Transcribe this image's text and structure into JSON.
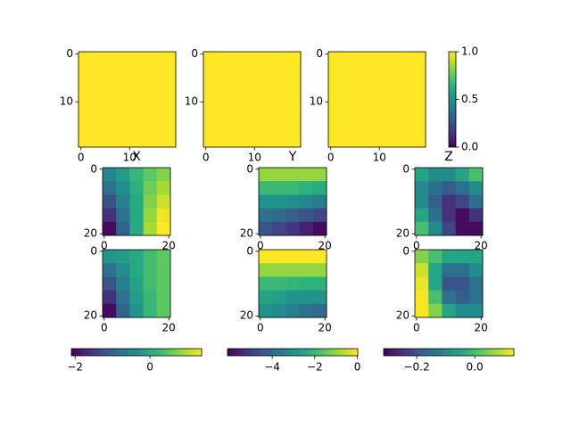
{
  "chart_data": [
    {
      "type": "heatmap",
      "cmap": "viridis",
      "clim": [
        0,
        1
      ],
      "xlim": [
        -0.5,
        19.5
      ],
      "ylim": [
        19.5,
        -0.5
      ],
      "xticks": [
        0,
        10
      ],
      "yticks": [
        0,
        10
      ],
      "z": [
        [
          1
        ]
      ]
    },
    {
      "type": "heatmap",
      "cmap": "viridis",
      "clim": [
        0,
        1
      ],
      "xlim": [
        -0.5,
        19.5
      ],
      "ylim": [
        19.5,
        -0.5
      ],
      "xticks": [
        0,
        10
      ],
      "yticks": [
        0,
        10
      ],
      "z": [
        [
          1
        ]
      ]
    },
    {
      "type": "heatmap",
      "cmap": "viridis",
      "clim": [
        0,
        1
      ],
      "xlim": [
        -0.5,
        19.5
      ],
      "ylim": [
        19.5,
        -0.5
      ],
      "xticks": [
        0,
        10
      ],
      "yticks": [
        0,
        10
      ],
      "z": [
        [
          1
        ]
      ]
    },
    {
      "type": "heatmap",
      "title": "X",
      "cmap": "viridis",
      "clim": [
        -2.1,
        1.38
      ],
      "xlim": [
        -0.5,
        20.5
      ],
      "ylim": [
        20.5,
        -0.5
      ],
      "xticks": [
        0,
        20
      ],
      "yticks": [
        0,
        20
      ],
      "z": [
        [
          -0.5,
          -0.2,
          0.2,
          0.5,
          0.7
        ],
        [
          -0.8,
          -0.4,
          0.1,
          0.6,
          0.9
        ],
        [
          -1.2,
          -0.6,
          0.0,
          0.7,
          1.1
        ],
        [
          -1.6,
          -0.8,
          0.0,
          0.8,
          1.3
        ],
        [
          -2.0,
          -1.0,
          0.0,
          0.9,
          1.38
        ]
      ]
    },
    {
      "type": "heatmap",
      "title": "Y",
      "cmap": "viridis",
      "clim": [
        -6.1,
        0.02
      ],
      "xlim": [
        -0.5,
        20.5
      ],
      "ylim": [
        20.5,
        -0.5
      ],
      "xticks": [
        0,
        20
      ],
      "yticks": [
        0,
        20
      ],
      "z": [
        [
          -1,
          -1,
          -1,
          -1,
          -1
        ],
        [
          -2,
          -2,
          -2,
          -2.2,
          -2.3
        ],
        [
          -3,
          -3,
          -3.1,
          -3.3,
          -3.5
        ],
        [
          -3.8,
          -4,
          -4.2,
          -4.5,
          -4.8
        ],
        [
          -4.5,
          -4.8,
          -5.1,
          -5.5,
          -5.9
        ]
      ]
    },
    {
      "type": "heatmap",
      "title": "Z",
      "cmap": "viridis",
      "clim": [
        -0.314,
        0.135
      ],
      "xlim": [
        -0.5,
        20.5
      ],
      "ylim": [
        20.5,
        -0.5
      ],
      "xticks": [
        0,
        20
      ],
      "yticks": [
        0,
        20
      ],
      "z": [
        [
          -0.05,
          -0.1,
          -0.1,
          -0.05,
          0.0
        ],
        [
          -0.1,
          -0.15,
          -0.18,
          -0.15,
          -0.1
        ],
        [
          -0.1,
          -0.18,
          -0.25,
          -0.22,
          -0.15
        ],
        [
          -0.05,
          -0.15,
          -0.25,
          -0.3,
          -0.25
        ],
        [
          0.0,
          -0.1,
          -0.22,
          -0.3,
          -0.3
        ]
      ]
    },
    {
      "type": "heatmap",
      "cmap": "viridis",
      "clim": [
        -2.1,
        1.38
      ],
      "xlim": [
        -0.5,
        20.5
      ],
      "ylim": [
        20.5,
        -0.5
      ],
      "xticks": [
        0,
        20
      ],
      "yticks": [
        0,
        20
      ],
      "z": [
        [
          -0.3,
          -0.2,
          0,
          0.3,
          0.5
        ],
        [
          -0.8,
          -0.4,
          0,
          0.3,
          0.5
        ],
        [
          -1.2,
          -0.6,
          -0.1,
          0.3,
          0.5
        ],
        [
          -1.6,
          -0.8,
          -0.2,
          0.2,
          0.5
        ],
        [
          -2.0,
          -1.0,
          -0.3,
          0.2,
          0.5
        ]
      ]
    },
    {
      "type": "heatmap",
      "cmap": "viridis",
      "clim": [
        -6.1,
        0.02
      ],
      "xlim": [
        -0.5,
        20.5
      ],
      "ylim": [
        20.5,
        -0.5
      ],
      "xticks": [
        0,
        20
      ],
      "yticks": [
        0,
        20
      ],
      "z": [
        [
          0,
          0,
          0,
          0,
          0
        ],
        [
          -1,
          -1,
          -1,
          -1,
          -1
        ],
        [
          -2,
          -2,
          -2.1,
          -2.2,
          -2.2
        ],
        [
          -2.5,
          -2.7,
          -3,
          -3,
          -3
        ],
        [
          -3,
          -3.2,
          -3.5,
          -3.8,
          -4
        ]
      ]
    },
    {
      "type": "heatmap",
      "cmap": "viridis",
      "clim": [
        -0.314,
        0.135
      ],
      "xlim": [
        -0.5,
        20.5
      ],
      "ylim": [
        20.5,
        -0.5
      ],
      "xticks": [
        0,
        20
      ],
      "yticks": [
        0,
        20
      ],
      "z": [
        [
          0.05,
          0.0,
          -0.05,
          -0.05,
          -0.05
        ],
        [
          0.1,
          -0.05,
          -0.15,
          -0.15,
          -0.1
        ],
        [
          0.12,
          -0.05,
          -0.2,
          -0.2,
          -0.15
        ],
        [
          0.13,
          0.0,
          -0.15,
          -0.18,
          -0.15
        ],
        [
          0.13,
          0.05,
          -0.05,
          -0.1,
          -0.1
        ]
      ]
    },
    {
      "type": "colorbar",
      "orientation": "vertical",
      "cmap": "viridis",
      "lim": [
        0,
        1
      ],
      "ticks": [
        {
          "value": 0,
          "label": "0.0"
        },
        {
          "value": 0.5,
          "label": "0.5"
        },
        {
          "value": 1,
          "label": "1.0"
        }
      ]
    },
    {
      "type": "colorbar",
      "orientation": "horizontal",
      "cmap": "viridis",
      "lim": [
        -2.1,
        1.38
      ],
      "ticks": [
        {
          "value": -2,
          "label": "−2"
        },
        0
      ]
    },
    {
      "type": "colorbar",
      "orientation": "horizontal",
      "cmap": "viridis",
      "lim": [
        -6.1,
        0.02
      ],
      "ticks": [
        {
          "value": -4,
          "label": "−4"
        },
        {
          "value": -2,
          "label": "−2"
        },
        0
      ]
    },
    {
      "type": "colorbar",
      "orientation": "horizontal",
      "cmap": "viridis",
      "lim": [
        -0.314,
        0.135
      ],
      "ticks": [
        {
          "value": -0.2,
          "label": "−0.2"
        },
        {
          "value": 0,
          "label": "0.0"
        }
      ]
    }
  ]
}
